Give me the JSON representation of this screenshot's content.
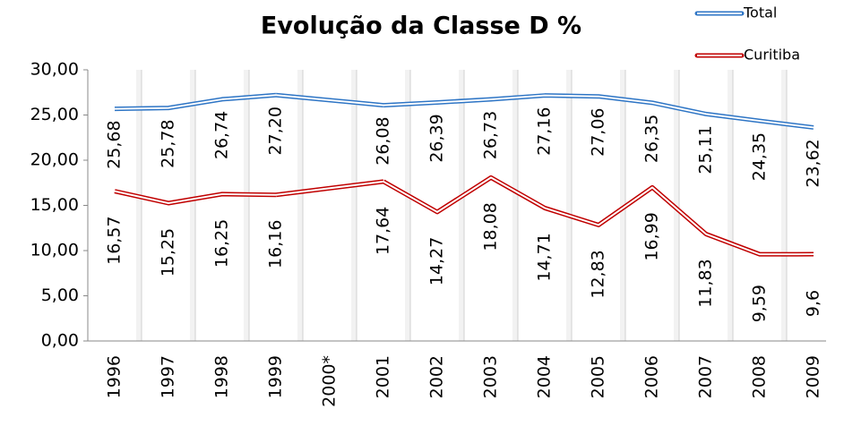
{
  "chart_data": {
    "type": "line",
    "title": "Evolução da Classe D %",
    "categories": [
      "1996",
      "1997",
      "1998",
      "1999",
      "2000*",
      "2001",
      "2002",
      "2003",
      "2004",
      "2005",
      "2006",
      "2007",
      "2008",
      "2009"
    ],
    "series": [
      {
        "name": "Total",
        "color": "#2e75c5",
        "values": [
          25.68,
          25.78,
          26.74,
          27.2,
          null,
          26.08,
          26.39,
          26.73,
          27.16,
          27.06,
          26.35,
          25.11,
          24.35,
          23.62
        ],
        "value_labels": [
          "25,68",
          "25,78",
          "26,74",
          "27,20",
          null,
          "26,08",
          "26,39",
          "26,73",
          "27,16",
          "27,06",
          "26,35",
          "25,11",
          "24,35",
          "23,62"
        ]
      },
      {
        "name": "Curitiba",
        "color": "#c00000",
        "values": [
          16.57,
          15.25,
          16.25,
          16.16,
          null,
          17.64,
          14.27,
          18.08,
          14.71,
          12.83,
          16.99,
          11.83,
          9.59,
          9.6
        ],
        "value_labels": [
          "16,57",
          "15,25",
          "16,25",
          "16,16",
          null,
          "17,64",
          "14,27",
          "18,08",
          "14,71",
          "12,83",
          "16,99",
          "11,83",
          "9,59",
          "9,6"
        ]
      }
    ],
    "ylim": [
      0,
      30
    ],
    "yticks": [
      {
        "value": 0,
        "label": "0,00"
      },
      {
        "value": 5,
        "label": "5,00"
      },
      {
        "value": 10,
        "label": "10,00"
      },
      {
        "value": 15,
        "label": "15,00"
      },
      {
        "value": 20,
        "label": "20,00"
      },
      {
        "value": 25,
        "label": "25,00"
      },
      {
        "value": 30,
        "label": "30,00"
      }
    ],
    "legend": "top-right"
  }
}
